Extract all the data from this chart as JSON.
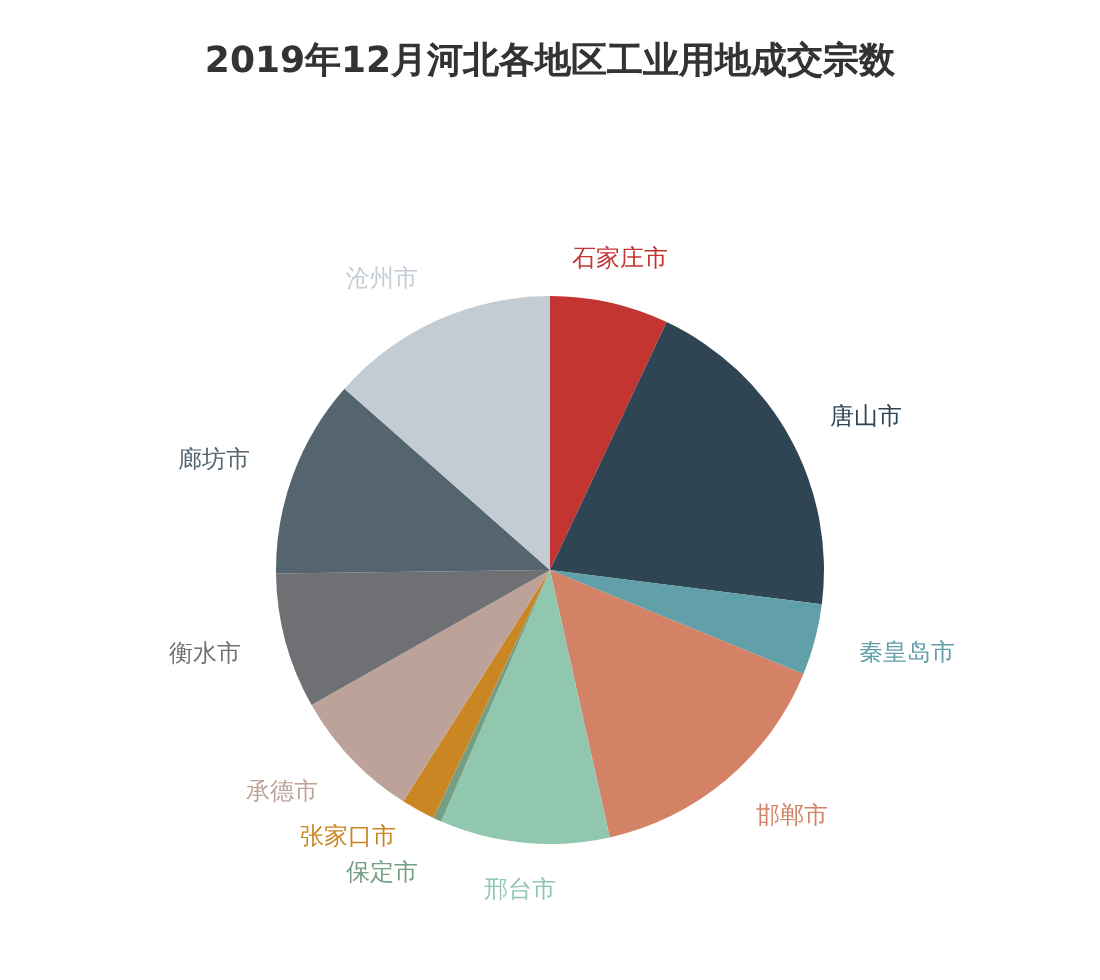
{
  "chart_data": {
    "type": "pie",
    "title": "2019年12月河北各地区工业用地成交宗数",
    "categories": [
      "石家庄市",
      "唐山市",
      "秦皇岛市",
      "邯郸市",
      "邢台市",
      "保定市",
      "张家口市",
      "承德市",
      "衡水市",
      "廊坊市",
      "沧州市"
    ],
    "values": [
      7,
      20,
      4.2,
      15.3,
      10,
      0.5,
      2,
      7.8,
      8,
      11.7,
      13.5
    ],
    "colors": [
      "#c23531",
      "#2f4554",
      "#61a0a8",
      "#d48265",
      "#91c7ae",
      "#749f83",
      "#ca8622",
      "#bda29a",
      "#6e7074",
      "#546570",
      "#c4ccd3"
    ],
    "legend": false
  }
}
